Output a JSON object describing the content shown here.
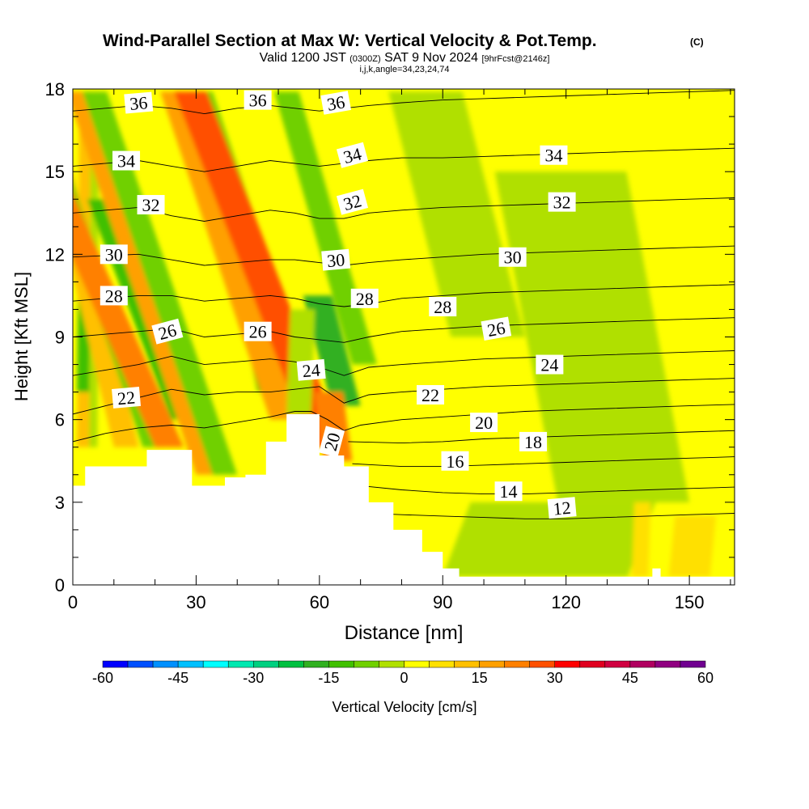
{
  "header": {
    "title": "Wind-Parallel Section at Max W: Vertical Velocity & Pot.Temp.",
    "copyright": "(C)",
    "valid_prefix": "Valid 1200 JST",
    "valid_utc": "(0300Z)",
    "valid_date": "SAT 9 Nov 2024",
    "forecast": "[9hrFcst@2146z]",
    "indices": "i,j,k,angle=34,23,24,74"
  },
  "colors": {
    "terrain": "#ffffff",
    "contour": "#000000",
    "background_field": "#ffff00"
  },
  "chart_data": {
    "type": "heatmap",
    "xlabel": "Distance [nm]",
    "ylabel": "Height [Kft MSL]",
    "xlim": [
      0,
      161
    ],
    "ylim": [
      0,
      18
    ],
    "xticks": [
      "0",
      "30",
      "60",
      "90",
      "120",
      "150"
    ],
    "yticks": [
      "0",
      "3",
      "6",
      "9",
      "12",
      "15",
      "18"
    ],
    "grid": false,
    "colorbar": {
      "label": "Vertical Velocity [cm/s]",
      "tick_labels": [
        "-60",
        "-45",
        "-30",
        "-15",
        "0",
        "15",
        "30",
        "45",
        "60"
      ],
      "levels": [
        -60,
        -55,
        -50,
        -45,
        -40,
        -35,
        -30,
        -25,
        -20,
        -15,
        -10,
        -5,
        0,
        5,
        10,
        15,
        20,
        25,
        30,
        35,
        40,
        45,
        50,
        55,
        60
      ],
      "colors": [
        "#0000ff",
        "#0050ff",
        "#0090ff",
        "#00c0ff",
        "#00ffff",
        "#00e8b0",
        "#00d080",
        "#00c040",
        "#30b020",
        "#40c000",
        "#70d000",
        "#b0e000",
        "#ffff00",
        "#ffe000",
        "#ffc000",
        "#ffa000",
        "#ff8000",
        "#ff5000",
        "#ff0000",
        "#e00020",
        "#d00040",
        "#b00060",
        "#900080",
        "#700090",
        "#6a0090"
      ]
    },
    "terrain_profile": {
      "x": [
        0,
        3,
        6,
        18,
        24,
        29,
        33,
        37,
        42,
        47,
        52,
        55,
        60,
        66,
        72,
        78,
        85,
        90,
        94,
        100,
        135,
        141,
        143,
        161
      ],
      "y": [
        3.6,
        4.3,
        4.3,
        4.9,
        4.9,
        3.6,
        3.6,
        3.9,
        4.0,
        5.2,
        6.2,
        6.2,
        4.7,
        4.3,
        3.0,
        2.0,
        1.2,
        0.6,
        0.3,
        0.3,
        0.3,
        0.6,
        0.3,
        0.3
      ]
    },
    "theta_contours": [
      {
        "label": "12",
        "x": [
          72,
          80,
          90,
          100,
          110,
          120,
          130,
          140,
          150,
          161
        ],
        "y": [
          2.6,
          2.55,
          2.5,
          2.45,
          2.4,
          2.4,
          2.45,
          2.5,
          2.55,
          2.6
        ]
      },
      {
        "label": "14",
        "x": [
          70,
          80,
          90,
          100,
          110,
          120,
          130,
          140,
          150,
          161
        ],
        "y": [
          3.6,
          3.45,
          3.35,
          3.3,
          3.3,
          3.35,
          3.4,
          3.45,
          3.5,
          3.55
        ]
      },
      {
        "label": "16",
        "x": [
          68,
          80,
          90,
          100,
          110,
          120,
          130,
          140,
          150,
          161
        ],
        "y": [
          4.4,
          4.3,
          4.3,
          4.35,
          4.4,
          4.45,
          4.5,
          4.55,
          4.6,
          4.65
        ]
      },
      {
        "label": "18",
        "x": [
          67,
          80,
          90,
          100,
          110,
          120,
          130,
          140,
          150,
          161
        ],
        "y": [
          5.2,
          5.15,
          5.2,
          5.3,
          5.35,
          5.4,
          5.45,
          5.5,
          5.55,
          5.6
        ]
      },
      {
        "label": "20",
        "x": [
          0,
          8,
          16,
          24,
          32,
          40,
          48,
          54,
          58,
          62,
          66,
          70,
          80,
          90,
          100,
          110,
          120,
          130,
          140,
          150,
          161
        ],
        "y": [
          5.2,
          5.5,
          5.7,
          5.8,
          5.7,
          5.9,
          6.1,
          6.3,
          6.3,
          6.0,
          5.6,
          5.8,
          6.0,
          6.1,
          6.2,
          6.3,
          6.35,
          6.4,
          6.45,
          6.5,
          6.55
        ]
      },
      {
        "label": "22",
        "x": [
          0,
          8,
          16,
          24,
          32,
          40,
          48,
          54,
          60,
          66,
          72,
          80,
          90,
          100,
          110,
          120,
          130,
          140,
          150,
          161
        ],
        "y": [
          6.2,
          6.5,
          6.8,
          7.1,
          6.9,
          7.0,
          7.0,
          7.1,
          7.2,
          6.6,
          6.9,
          7.0,
          7.1,
          7.2,
          7.25,
          7.3,
          7.35,
          7.4,
          7.45,
          7.5
        ]
      },
      {
        "label": "24",
        "x": [
          0,
          8,
          16,
          24,
          32,
          40,
          48,
          54,
          60,
          66,
          72,
          80,
          90,
          100,
          110,
          120,
          130,
          140,
          150,
          161
        ],
        "y": [
          7.6,
          7.8,
          8.0,
          8.3,
          8.0,
          8.1,
          8.2,
          8.1,
          7.9,
          7.6,
          7.9,
          8.0,
          8.1,
          8.2,
          8.25,
          8.3,
          8.35,
          8.4,
          8.45,
          8.5
        ]
      },
      {
        "label": "26",
        "x": [
          0,
          8,
          16,
          24,
          32,
          40,
          48,
          54,
          60,
          66,
          72,
          80,
          90,
          100,
          110,
          120,
          130,
          140,
          150,
          161
        ],
        "y": [
          9.0,
          9.1,
          9.2,
          9.3,
          9.0,
          9.1,
          9.2,
          9.0,
          8.9,
          8.8,
          9.0,
          9.2,
          9.3,
          9.4,
          9.45,
          9.5,
          9.55,
          9.6,
          9.65,
          9.7
        ]
      },
      {
        "label": "28",
        "x": [
          0,
          8,
          16,
          24,
          32,
          40,
          48,
          54,
          60,
          66,
          72,
          80,
          90,
          100,
          110,
          120,
          130,
          140,
          150,
          161
        ],
        "y": [
          10.3,
          10.4,
          10.5,
          10.5,
          10.3,
          10.4,
          10.5,
          10.4,
          10.2,
          10.1,
          10.2,
          10.4,
          10.5,
          10.6,
          10.65,
          10.7,
          10.75,
          10.8,
          10.85,
          10.9
        ]
      },
      {
        "label": "30",
        "x": [
          0,
          8,
          16,
          24,
          32,
          40,
          48,
          54,
          60,
          66,
          72,
          80,
          90,
          100,
          110,
          120,
          130,
          140,
          150,
          161
        ],
        "y": [
          11.9,
          11.95,
          12.0,
          11.8,
          11.6,
          11.7,
          11.8,
          11.8,
          11.7,
          11.6,
          11.7,
          11.8,
          11.9,
          12.0,
          12.05,
          12.1,
          12.15,
          12.2,
          12.25,
          12.3
        ]
      },
      {
        "label": "32",
        "x": [
          0,
          8,
          16,
          24,
          32,
          40,
          48,
          54,
          60,
          66,
          72,
          80,
          90,
          100,
          110,
          120,
          130,
          140,
          150,
          161
        ],
        "y": [
          13.5,
          13.6,
          13.7,
          13.4,
          13.2,
          13.4,
          13.6,
          13.5,
          13.3,
          13.3,
          13.5,
          13.6,
          13.7,
          13.75,
          13.8,
          13.85,
          13.9,
          13.95,
          14.0,
          14.05
        ]
      },
      {
        "label": "34",
        "x": [
          0,
          8,
          16,
          24,
          32,
          40,
          48,
          54,
          60,
          66,
          72,
          80,
          90,
          100,
          110,
          120,
          130,
          140,
          150,
          161
        ],
        "y": [
          15.2,
          15.3,
          15.4,
          15.2,
          15.0,
          15.2,
          15.4,
          15.3,
          15.2,
          15.3,
          15.4,
          15.5,
          15.5,
          15.55,
          15.6,
          15.65,
          15.7,
          15.75,
          15.8,
          15.85
        ]
      },
      {
        "label": "36",
        "x": [
          0,
          8,
          16,
          24,
          32,
          40,
          48,
          54,
          60,
          66,
          72,
          80,
          90,
          100,
          110,
          120,
          130,
          140,
          150,
          161
        ],
        "y": [
          17.2,
          17.3,
          17.4,
          17.3,
          17.1,
          17.3,
          17.4,
          17.3,
          17.2,
          17.3,
          17.4,
          17.5,
          17.6,
          17.65,
          17.7,
          17.75,
          17.8,
          17.85,
          17.9,
          17.95
        ]
      }
    ],
    "contour_labels": [
      {
        "text": "36",
        "x": 16,
        "y": 17.5,
        "angle": -5
      },
      {
        "text": "36",
        "x": 45,
        "y": 17.6,
        "angle": 0
      },
      {
        "text": "36",
        "x": 64,
        "y": 17.5,
        "angle": -10
      },
      {
        "text": "34",
        "x": 13,
        "y": 15.4,
        "angle": 0
      },
      {
        "text": "34",
        "x": 68,
        "y": 15.6,
        "angle": -15
      },
      {
        "text": "34",
        "x": 117,
        "y": 15.6,
        "angle": 0
      },
      {
        "text": "32",
        "x": 19,
        "y": 13.8,
        "angle": 0
      },
      {
        "text": "32",
        "x": 68,
        "y": 13.9,
        "angle": -15
      },
      {
        "text": "32",
        "x": 119,
        "y": 13.9,
        "angle": 0
      },
      {
        "text": "30",
        "x": 10,
        "y": 12.0,
        "angle": 0
      },
      {
        "text": "30",
        "x": 64,
        "y": 11.8,
        "angle": -5
      },
      {
        "text": "30",
        "x": 107,
        "y": 11.9,
        "angle": 0
      },
      {
        "text": "28",
        "x": 10,
        "y": 10.5,
        "angle": 0
      },
      {
        "text": "28",
        "x": 71,
        "y": 10.4,
        "angle": 0
      },
      {
        "text": "28",
        "x": 90,
        "y": 10.1,
        "angle": 0
      },
      {
        "text": "26",
        "x": 23,
        "y": 9.2,
        "angle": -15
      },
      {
        "text": "26",
        "x": 45,
        "y": 9.2,
        "angle": 0
      },
      {
        "text": "26",
        "x": 103,
        "y": 9.3,
        "angle": -10
      },
      {
        "text": "24",
        "x": 58,
        "y": 7.8,
        "angle": -5
      },
      {
        "text": "24",
        "x": 116,
        "y": 8.0,
        "angle": 0
      },
      {
        "text": "22",
        "x": 13,
        "y": 6.8,
        "angle": -5
      },
      {
        "text": "22",
        "x": 87,
        "y": 6.9,
        "angle": 0
      },
      {
        "text": "20",
        "x": 63,
        "y": 5.2,
        "angle": -75
      },
      {
        "text": "20",
        "x": 100,
        "y": 5.9,
        "angle": 0
      },
      {
        "text": "18",
        "x": 112,
        "y": 5.2,
        "angle": 0
      },
      {
        "text": "16",
        "x": 93,
        "y": 4.5,
        "angle": 0
      },
      {
        "text": "14",
        "x": 106,
        "y": 3.4,
        "angle": 0
      },
      {
        "text": "12",
        "x": 119,
        "y": 2.8,
        "angle": -5
      }
    ],
    "w_features": [
      {
        "kind": "updraft",
        "x": [
          1,
          5
        ],
        "y": [
          5,
          17.9
        ],
        "tilt": 0.0,
        "value": 10
      },
      {
        "kind": "downdraft",
        "x": [
          1,
          4
        ],
        "y": [
          7,
          12
        ],
        "tilt": 0.0,
        "value": -15
      },
      {
        "kind": "downdraft",
        "x": [
          4,
          6
        ],
        "y": [
          5,
          16
        ],
        "tilt": 0.0,
        "value": -5
      },
      {
        "kind": "updraft",
        "x": [
          10,
          16
        ],
        "y": [
          5,
          17.9
        ],
        "tilt": 0.25,
        "value": 10
      },
      {
        "kind": "downdraft",
        "x": [
          17,
          22
        ],
        "y": [
          5,
          17.9
        ],
        "tilt": 0.35,
        "value": -10
      },
      {
        "kind": "updraft",
        "x": [
          20,
          27
        ],
        "y": [
          5,
          17.9
        ],
        "tilt": 0.45,
        "value": 20
      },
      {
        "kind": "downdraft",
        "x": [
          24,
          30
        ],
        "y": [
          6,
          14
        ],
        "tilt": 0.4,
        "value": -15
      },
      {
        "kind": "updraft",
        "x": [
          30,
          37
        ],
        "y": [
          4,
          17.9
        ],
        "tilt": 0.35,
        "value": 15
      },
      {
        "kind": "downdraft",
        "x": [
          34,
          40
        ],
        "y": [
          4,
          17.9
        ],
        "tilt": 0.35,
        "value": -10
      },
      {
        "kind": "downdraft",
        "x": [
          45,
          52
        ],
        "y": [
          7,
          12
        ],
        "tilt": 0.25,
        "value": -15
      },
      {
        "kind": "updraft",
        "x": [
          48,
          56
        ],
        "y": [
          6,
          17.9
        ],
        "tilt": 0.35,
        "value": 15
      },
      {
        "kind": "downdraft",
        "x": [
          55,
          61
        ],
        "y": [
          6,
          17.9
        ],
        "tilt": 0.35,
        "value": -10
      },
      {
        "kind": "updraft",
        "x": [
          58,
          66
        ],
        "y": [
          5,
          17.9
        ],
        "tilt": 0.4,
        "value": 25
      },
      {
        "kind": "downdraft",
        "x": [
          63,
          70
        ],
        "y": [
          6.5,
          10.5
        ],
        "tilt": 0.3,
        "value": -20
      },
      {
        "kind": "updraft",
        "x": [
          61,
          68
        ],
        "y": [
          4.5,
          7
        ],
        "tilt": 0.2,
        "value": 20
      },
      {
        "kind": "downdraft",
        "x": [
          68,
          74
        ],
        "y": [
          8,
          17.9
        ],
        "tilt": 0.3,
        "value": -8
      },
      {
        "kind": "downdraft",
        "x": [
          92,
          110
        ],
        "y": [
          9,
          17.9
        ],
        "tilt": 0.3,
        "value": -4
      },
      {
        "kind": "downdraft",
        "x": [
          118,
          150
        ],
        "y": [
          3,
          15
        ],
        "tilt": 0.25,
        "value": -5
      },
      {
        "kind": "downdraft",
        "x": [
          90,
          135
        ],
        "y": [
          0.3,
          3.0
        ],
        "tilt": 0.0,
        "value": -5
      },
      {
        "kind": "updraft",
        "x": [
          136,
          140
        ],
        "y": [
          0.3,
          3.0
        ],
        "tilt": 0.0,
        "value": 8
      },
      {
        "kind": "updraft",
        "x": [
          145,
          155
        ],
        "y": [
          0.3,
          2.5
        ],
        "tilt": 0.0,
        "value": 5
      },
      {
        "kind": "updraft",
        "x": [
          72,
          90
        ],
        "y": [
          0.8,
          4.0
        ],
        "tilt": 0.0,
        "value": 4
      },
      {
        "kind": "downdraft",
        "x": [
          52,
          58
        ],
        "y": [
          6.2,
          10
        ],
        "tilt": 0.0,
        "value": -3
      }
    ]
  }
}
